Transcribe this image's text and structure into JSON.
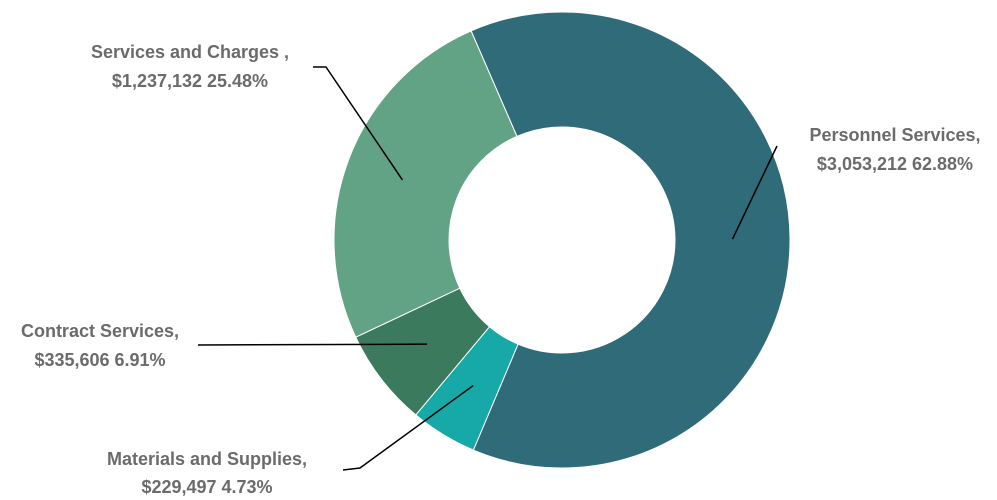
{
  "chart_data": {
    "type": "pie",
    "donut": true,
    "legend": "none",
    "categories": [
      "Personnel Services",
      "Materials and Supplies",
      "Contract Services",
      "Services and Charges"
    ],
    "values": [
      3053212,
      229497,
      335606,
      1237132
    ],
    "percentages": [
      62.88,
      4.73,
      6.91,
      25.48
    ],
    "colors": [
      "#2f6b78",
      "#17a8a8",
      "#3b7a5c",
      "#63a385"
    ],
    "labels": [
      {
        "line1": "Personnel Services,",
        "line2": "$3,053,212  62.88%"
      },
      {
        "line1": "Materials and Supplies,",
        "line2": "$229,497  4.73%"
      },
      {
        "line1": "Contract Services,",
        "line2": "$335,606  6.91%"
      },
      {
        "line1": "Services and Charges ,",
        "line2": "$1,237,132 25.48%"
      }
    ]
  }
}
